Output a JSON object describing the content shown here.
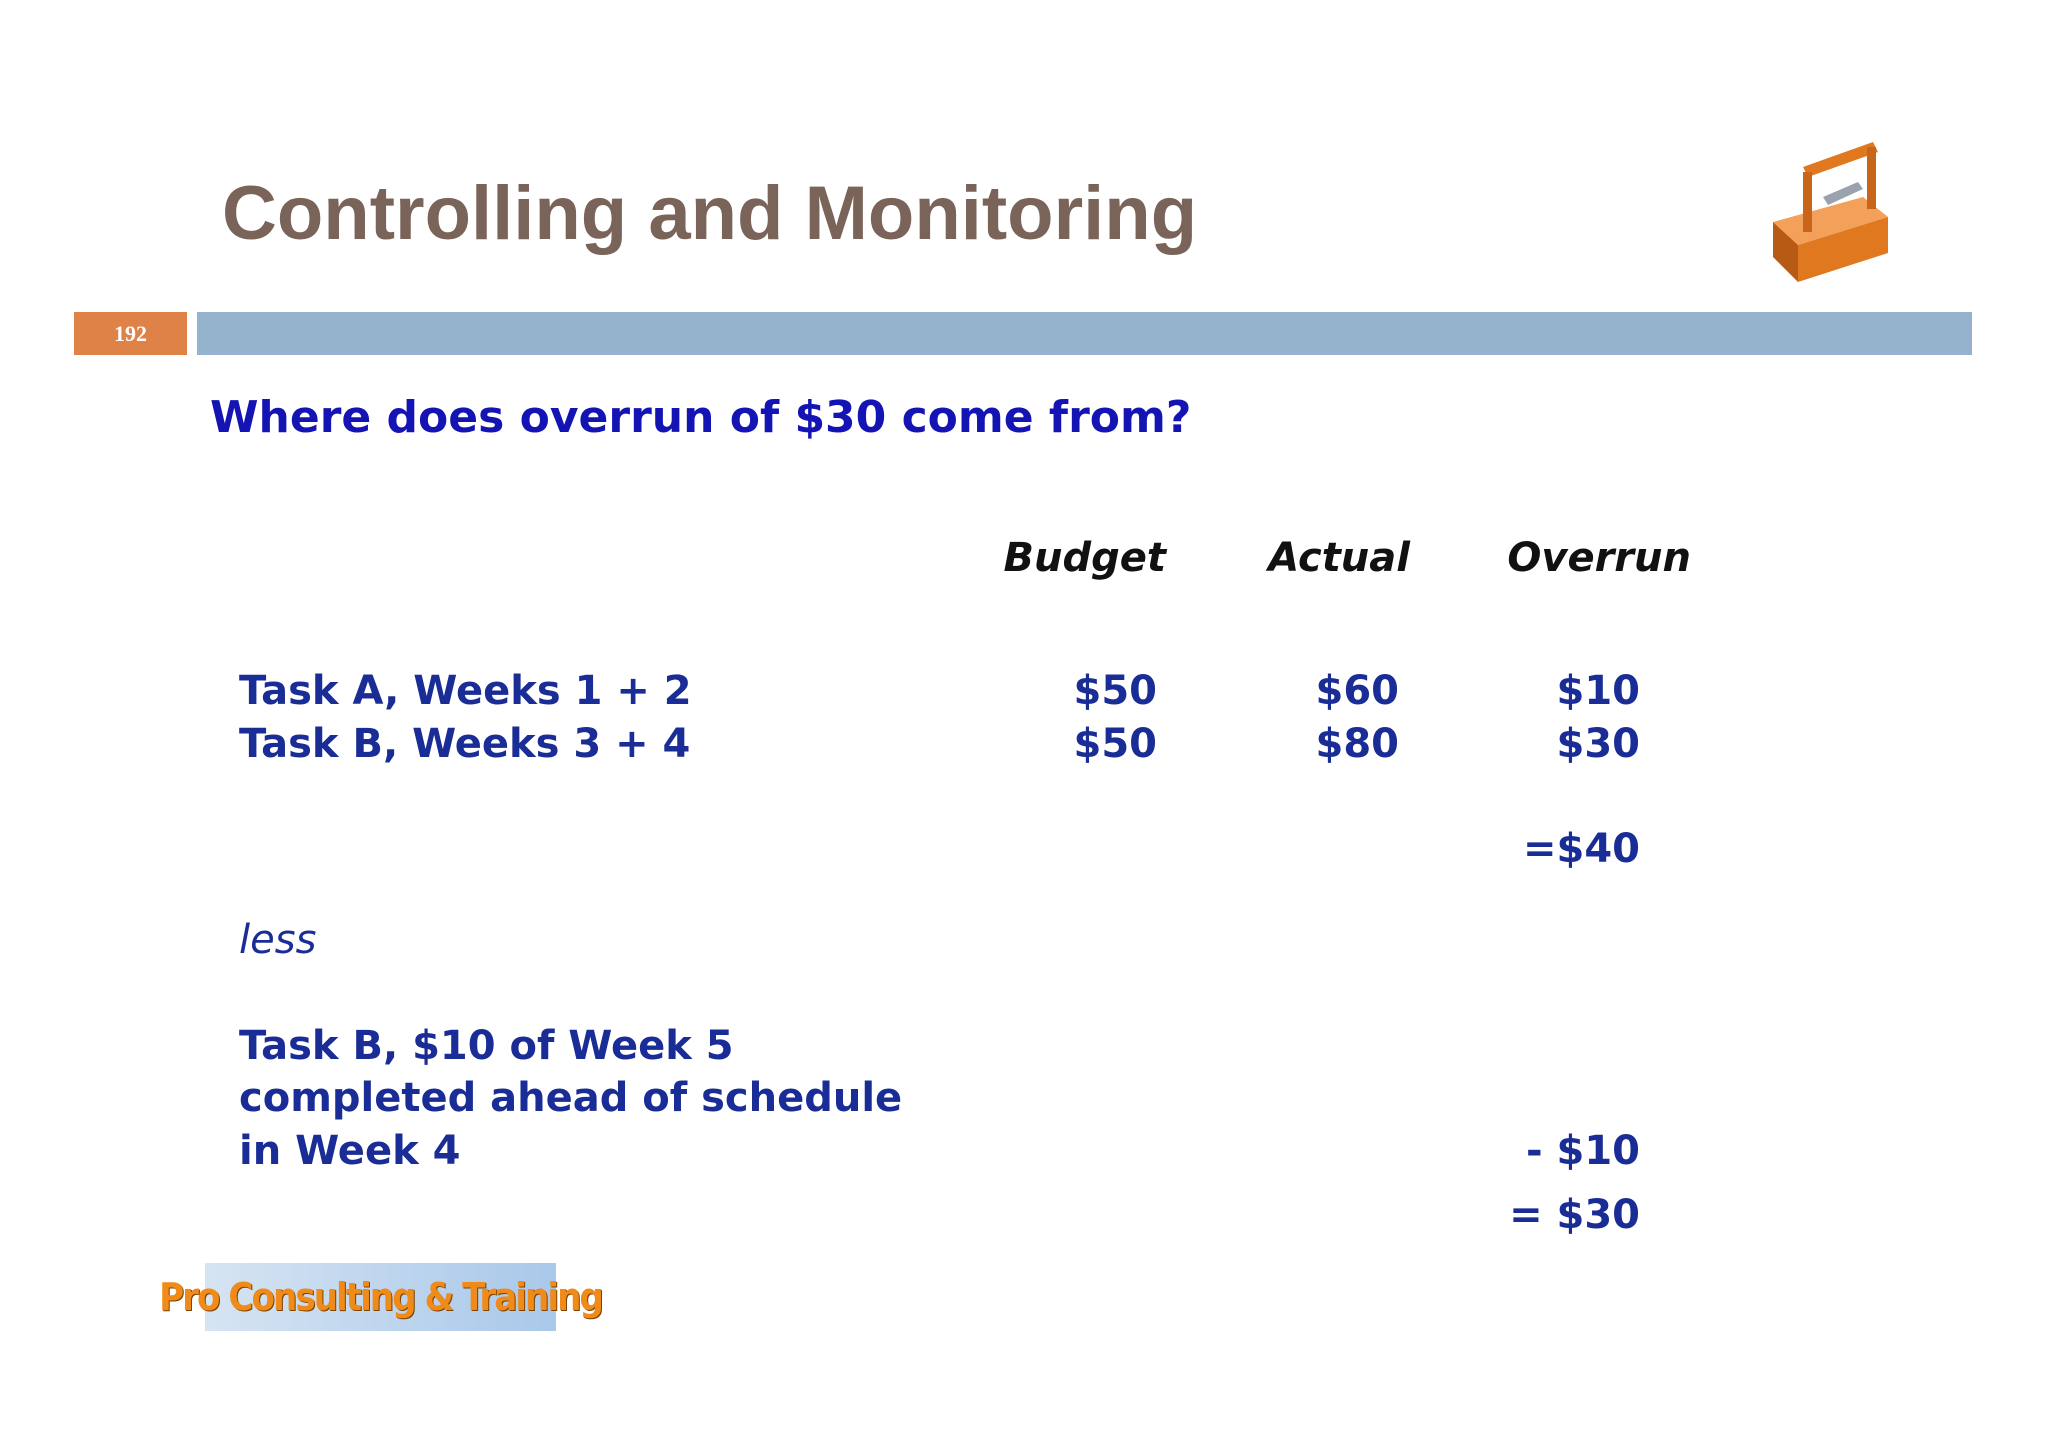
{
  "header": {
    "title": "Controlling and Monitoring",
    "page_number": "192"
  },
  "subtitle": "Where does overrun of $30 come from?",
  "table": {
    "columns": [
      "Budget",
      "Actual",
      "Overrun"
    ],
    "rows": [
      [
        "Task A, Weeks 1 + 2",
        "$50",
        "$60",
        "$10"
      ],
      [
        "Task B, Weeks 3 + 4",
        "$50",
        "$80",
        "$30"
      ]
    ],
    "total": "=$40"
  },
  "less": "less",
  "adjustment": {
    "lines": [
      "Task B, $10 of Week 5",
      "completed ahead of schedule",
      "in Week 4"
    ],
    "value": "- $10"
  },
  "result": "= $30",
  "footer": {
    "logo": "Pro Consulting & Training"
  }
}
